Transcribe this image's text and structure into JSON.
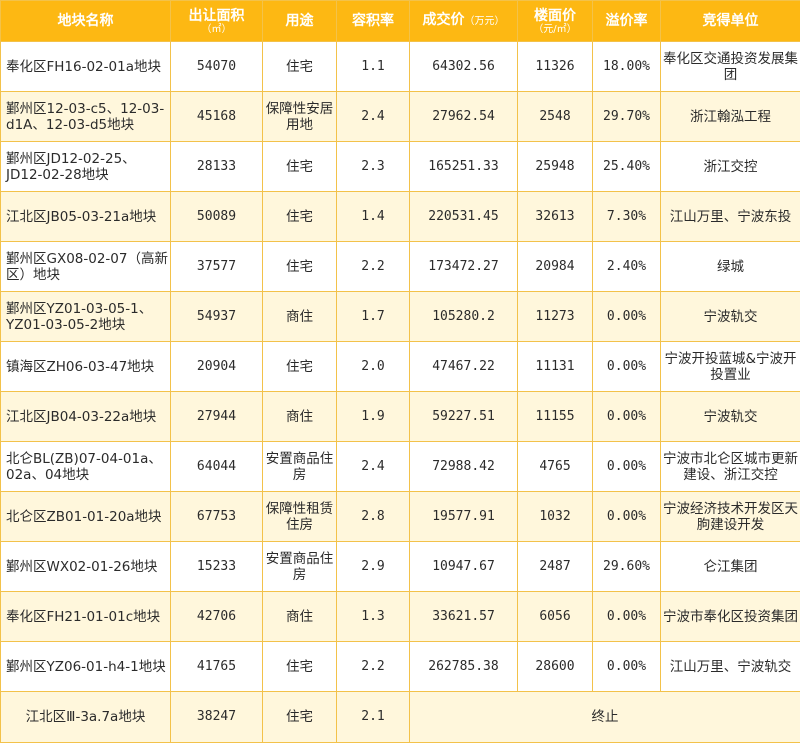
{
  "colors": {
    "header_bg": "#fdb813",
    "border": "#f3c24a",
    "stripe": "#fff7dc"
  },
  "headers": {
    "name": "地块名称",
    "area": "出让面积",
    "area_unit": "（㎡）",
    "use": "用途",
    "far": "容积率",
    "price": "成交价",
    "price_unit": "（万元）",
    "floor_price": "楼面价",
    "floor_price_unit": "（元/㎡）",
    "premium": "溢价率",
    "winner": "竞得单位"
  },
  "rows": [
    {
      "name": "奉化区FH16-02-01a地块",
      "area": "54070",
      "use": "住宅",
      "far": "1.1",
      "price": "64302.56",
      "floor_price": "11326",
      "premium": "18.00%",
      "winner": "奉化区交通投资发展集团"
    },
    {
      "name": "鄞州区12-03-c5、12-03-d1A、12-03-d5地块",
      "area": "45168",
      "use": "保障性安居用地",
      "far": "2.4",
      "price": "27962.54",
      "floor_price": "2548",
      "premium": "29.70%",
      "winner": "浙江翰泓工程"
    },
    {
      "name": "鄞州区JD12-02-25、JD12-02-28地块",
      "area": "28133",
      "use": "住宅",
      "far": "2.3",
      "price": "165251.33",
      "floor_price": "25948",
      "premium": "25.40%",
      "winner": "浙江交控"
    },
    {
      "name": "江北区JB05-03-21a地块",
      "area": "50089",
      "use": "住宅",
      "far": "1.4",
      "price": "220531.45",
      "floor_price": "32613",
      "premium": "7.30%",
      "winner": "江山万里、宁波东投"
    },
    {
      "name": "鄞州区GX08-02-07（高新区）地块",
      "area": "37577",
      "use": "住宅",
      "far": "2.2",
      "price": "173472.27",
      "floor_price": "20984",
      "premium": "2.40%",
      "winner": "绿城"
    },
    {
      "name": "鄞州区YZ01-03-05-1、YZ01-03-05-2地块",
      "area": "54937",
      "use": "商住",
      "far": "1.7",
      "price": "105280.2",
      "floor_price": "11273",
      "premium": "0.00%",
      "winner": "宁波轨交"
    },
    {
      "name": "镇海区ZH06-03-47地块",
      "area": "20904",
      "use": "住宅",
      "far": "2.0",
      "price": "47467.22",
      "floor_price": "11131",
      "premium": "0.00%",
      "winner": "宁波开投蓝城&宁波开投置业"
    },
    {
      "name": "江北区JB04-03-22a地块",
      "area": "27944",
      "use": "商住",
      "far": "1.9",
      "price": "59227.51",
      "floor_price": "11155",
      "premium": "0.00%",
      "winner": "宁波轨交"
    },
    {
      "name": "北仑BL(ZB)07-04-01a、02a、04地块",
      "area": "64044",
      "use": "安置商品住房",
      "far": "2.4",
      "price": "72988.42",
      "floor_price": "4765",
      "premium": "0.00%",
      "winner": "宁波市北仑区城市更新建设、浙江交控"
    },
    {
      "name": "北仑区ZB01-01-20a地块",
      "area": "67753",
      "use": "保障性租赁住房",
      "far": "2.8",
      "price": "19577.91",
      "floor_price": "1032",
      "premium": "0.00%",
      "winner": "宁波经济技术开发区天朐建设开发"
    },
    {
      "name": "鄞州区WX02-01-26地块",
      "area": "15233",
      "use": "安置商品住房",
      "far": "2.9",
      "price": "10947.67",
      "floor_price": "2487",
      "premium": "29.60%",
      "winner": "仑江集团"
    },
    {
      "name": "奉化区FH21-01-01c地块",
      "area": "42706",
      "use": "商住",
      "far": "1.3",
      "price": "33621.57",
      "floor_price": "6056",
      "premium": "0.00%",
      "winner": "宁波市奉化区投资集团"
    },
    {
      "name": "鄞州区YZ06-01-h4-1地块",
      "area": "41765",
      "use": "住宅",
      "far": "2.2",
      "price": "262785.38",
      "floor_price": "28600",
      "premium": "0.00%",
      "winner": "江山万里、宁波轨交"
    }
  ],
  "last_row": {
    "name": "江北区Ⅲ-3a.7a地块",
    "area": "38247",
    "use": "住宅",
    "far": "2.1",
    "status": "终止"
  }
}
